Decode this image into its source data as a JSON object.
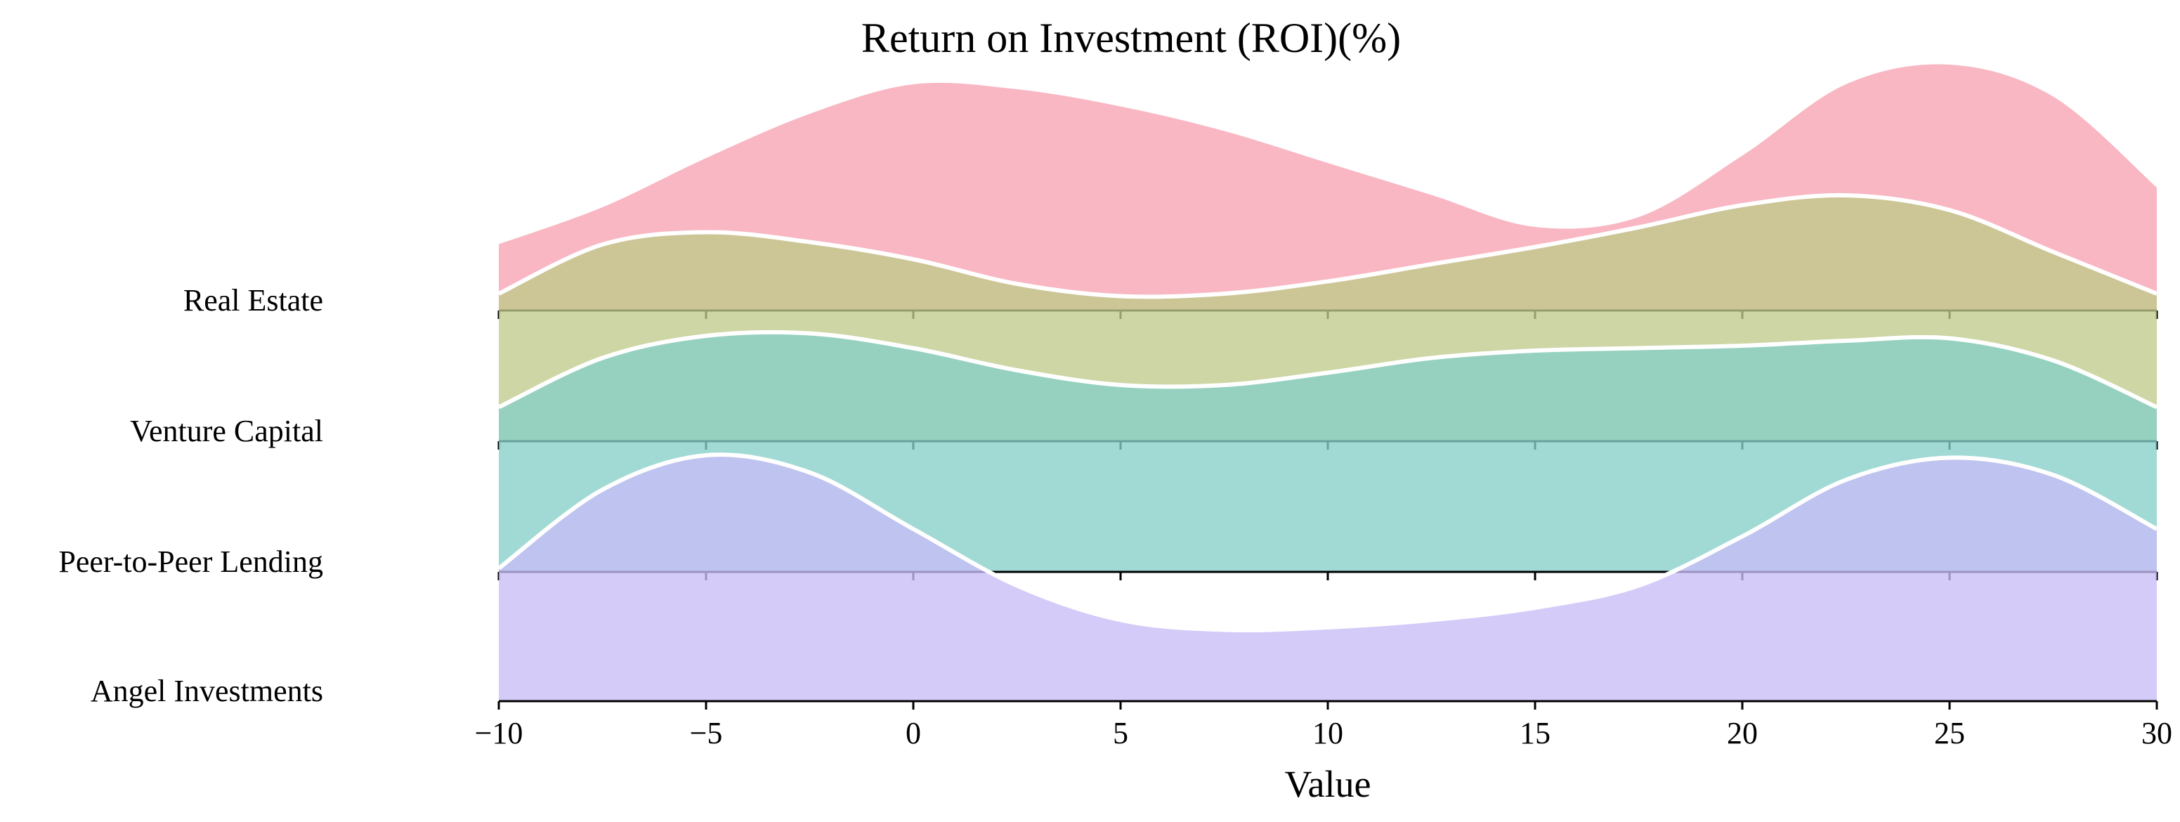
{
  "chart_data": {
    "type": "area",
    "subtype": "ridgeline",
    "title": "Return on Investment (ROI)(%)",
    "xlabel": "Value",
    "ylabel": "",
    "xlim": [
      -10,
      30
    ],
    "xticks": [
      -10,
      -5,
      0,
      5,
      10,
      15,
      20,
      25,
      30
    ],
    "grid": false,
    "legend": "none",
    "series": [
      {
        "name": "Real Estate",
        "color": "#f7a1b2",
        "x": [
          -10,
          -7.5,
          -5,
          -2.5,
          0,
          2.5,
          5,
          7.5,
          10,
          12.5,
          15,
          17.5,
          20,
          22.5,
          25,
          27.5,
          30
        ],
        "density": [
          0.27,
          0.42,
          0.62,
          0.8,
          0.92,
          0.9,
          0.83,
          0.73,
          0.6,
          0.47,
          0.34,
          0.38,
          0.63,
          0.92,
          1.0,
          0.87,
          0.5
        ]
      },
      {
        "name": "Venture Capital",
        "color": "#bfca8a",
        "x": [
          -10,
          -7.5,
          -5,
          -2.5,
          0,
          2.5,
          5,
          7.5,
          10,
          12.5,
          15,
          17.5,
          20,
          22.5,
          25,
          27.5,
          30
        ],
        "density": [
          0.6,
          0.8,
          0.85,
          0.81,
          0.74,
          0.64,
          0.59,
          0.6,
          0.65,
          0.72,
          0.79,
          0.87,
          0.96,
          1.0,
          0.94,
          0.77,
          0.6
        ]
      },
      {
        "name": "Peer-to-Peer Lending",
        "color": "#86cfc8",
        "x": [
          -10,
          -7.5,
          -5,
          -2.5,
          0,
          2.5,
          5,
          7.5,
          10,
          12.5,
          15,
          17.5,
          20,
          22.5,
          25,
          27.5,
          30
        ],
        "density": [
          0.67,
          0.87,
          0.96,
          0.97,
          0.91,
          0.82,
          0.76,
          0.76,
          0.81,
          0.87,
          0.9,
          0.91,
          0.92,
          0.94,
          0.95,
          0.86,
          0.67
        ]
      },
      {
        "name": "Angel Investments",
        "color": "#c8bdf6",
        "x": [
          -10,
          -7.5,
          -5,
          -2.5,
          0,
          2.5,
          5,
          7.5,
          10,
          12.5,
          15,
          17.5,
          20,
          22.5,
          25,
          27.5,
          30
        ],
        "density": [
          0.54,
          0.86,
          1.0,
          0.93,
          0.7,
          0.47,
          0.33,
          0.29,
          0.3,
          0.33,
          0.38,
          0.47,
          0.67,
          0.9,
          0.99,
          0.92,
          0.7
        ]
      }
    ]
  }
}
